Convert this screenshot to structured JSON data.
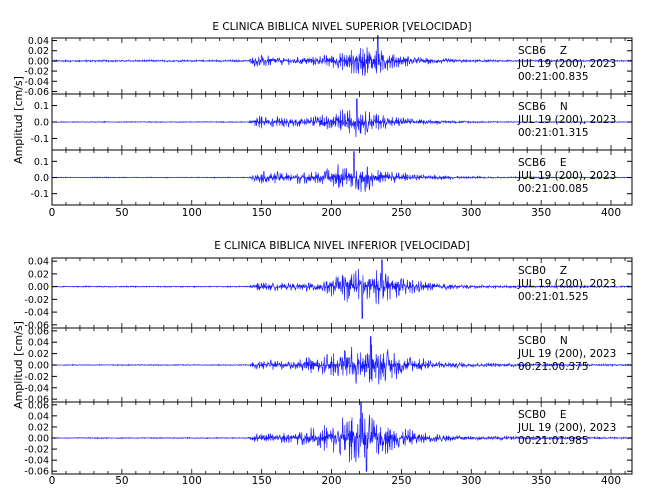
{
  "colors": {
    "trace": "#1a1aff",
    "axes": "#000000",
    "background": "#ffffff"
  },
  "chart_data": [
    {
      "type": "line",
      "title": "E CLINICA BIBLICA NIVEL SUPERIOR [VELOCIDAD]",
      "ylabel": "Amplitud [cm/s]",
      "xlim": [
        0,
        415
      ],
      "xticks": [
        0,
        50,
        100,
        150,
        200,
        250,
        300,
        350,
        400
      ],
      "panels": [
        {
          "station": "SCB6",
          "component": "Z",
          "date": "JUL 19 (200), 2023",
          "time": "00:21:00.835",
          "ylim": [
            -0.065,
            0.045
          ],
          "yticks": [
            0.04,
            0.02,
            0.0,
            -0.02,
            -0.04,
            -0.06
          ],
          "yticklabels": [
            "0.04",
            "0.02",
            "0.00",
            "-0.02",
            "-0.04",
            "-0.06"
          ],
          "envelope": [
            [
              0,
              0.002
            ],
            [
              140,
              0.002
            ],
            [
              147,
              0.015
            ],
            [
              160,
              0.009
            ],
            [
              175,
              0.008
            ],
            [
              195,
              0.012
            ],
            [
              210,
              0.02
            ],
            [
              222,
              0.036
            ],
            [
              232,
              0.032
            ],
            [
              245,
              0.016
            ],
            [
              265,
              0.008
            ],
            [
              290,
              0.004
            ],
            [
              320,
              0.002
            ],
            [
              415,
              0.0015
            ]
          ],
          "bursts": [
            [
              233,
              0.05
            ]
          ]
        },
        {
          "station": "SCB6",
          "component": "N",
          "date": "JUL 19 (200), 2023",
          "time": "00:21:01.315",
          "ylim": [
            -0.17,
            0.17
          ],
          "yticks": [
            0.1,
            0.0,
            -0.1
          ],
          "yticklabels": [
            "0.1",
            "0.0",
            "-0.1"
          ],
          "envelope": [
            [
              0,
              0.003
            ],
            [
              140,
              0.003
            ],
            [
              148,
              0.045
            ],
            [
              160,
              0.035
            ],
            [
              180,
              0.03
            ],
            [
              200,
              0.06
            ],
            [
              215,
              0.1
            ],
            [
              225,
              0.08
            ],
            [
              240,
              0.04
            ],
            [
              260,
              0.018
            ],
            [
              290,
              0.008
            ],
            [
              320,
              0.004
            ],
            [
              415,
              0.003
            ]
          ],
          "bursts": [
            [
              218,
              0.14
            ]
          ]
        },
        {
          "station": "SCB6",
          "component": "E",
          "date": "JUL 19 (200), 2023",
          "time": "00:21:00.085",
          "ylim": [
            -0.17,
            0.17
          ],
          "yticks": [
            0.1,
            0.0,
            -0.1
          ],
          "yticklabels": [
            "0.1",
            "0.0",
            "-0.1"
          ],
          "envelope": [
            [
              0,
              0.003
            ],
            [
              140,
              0.003
            ],
            [
              148,
              0.045
            ],
            [
              160,
              0.04
            ],
            [
              180,
              0.04
            ],
            [
              200,
              0.07
            ],
            [
              215,
              0.12
            ],
            [
              225,
              0.09
            ],
            [
              240,
              0.05
            ],
            [
              260,
              0.02
            ],
            [
              290,
              0.01
            ],
            [
              320,
              0.005
            ],
            [
              415,
              0.003
            ]
          ],
          "bursts": [
            [
              216,
              0.16
            ]
          ]
        }
      ]
    },
    {
      "type": "line",
      "title": "E CLINICA BIBLICA NIVEL INFERIOR [VELOCIDAD]",
      "ylabel": "Amplitud [cm/s]",
      "xlim": [
        0,
        415
      ],
      "xticks": [
        0,
        50,
        100,
        150,
        200,
        250,
        300,
        350,
        400
      ],
      "panels": [
        {
          "station": "SCB0",
          "component": "Z",
          "date": "JUL 19 (200), 2023",
          "time": "00:21:01.525",
          "ylim": [
            -0.065,
            0.045
          ],
          "yticks": [
            0.04,
            0.02,
            0.0,
            -0.02,
            -0.04,
            -0.06
          ],
          "yticklabels": [
            "0.04",
            "0.02",
            "0.00",
            "-0.02",
            "-0.04",
            "-0.06"
          ],
          "envelope": [
            [
              0,
              0.001
            ],
            [
              140,
              0.001
            ],
            [
              147,
              0.008
            ],
            [
              170,
              0.006
            ],
            [
              195,
              0.012
            ],
            [
              215,
              0.028
            ],
            [
              226,
              0.034
            ],
            [
              235,
              0.03
            ],
            [
              248,
              0.018
            ],
            [
              265,
              0.01
            ],
            [
              290,
              0.004
            ],
            [
              320,
              0.002
            ],
            [
              415,
              0.0015
            ]
          ],
          "bursts": [
            [
              222,
              -0.05
            ],
            [
              236,
              0.042
            ]
          ]
        },
        {
          "station": "SCB0",
          "component": "N",
          "date": "JUL 19 (200), 2023",
          "time": "00:21:00.375",
          "ylim": [
            -0.065,
            0.065
          ],
          "yticks": [
            0.06,
            0.04,
            0.02,
            0.0,
            -0.02,
            -0.04,
            -0.06
          ],
          "yticklabels": [
            "0.06",
            "0.04",
            "0.02",
            "0.00",
            "-0.02",
            "-0.04",
            "-0.06"
          ],
          "envelope": [
            [
              0,
              0.001
            ],
            [
              140,
              0.001
            ],
            [
              147,
              0.01
            ],
            [
              170,
              0.008
            ],
            [
              195,
              0.02
            ],
            [
              215,
              0.035
            ],
            [
              228,
              0.04
            ],
            [
              240,
              0.03
            ],
            [
              255,
              0.018
            ],
            [
              275,
              0.008
            ],
            [
              300,
              0.004
            ],
            [
              415,
              0.0015
            ]
          ],
          "bursts": [
            [
              228,
              0.05
            ]
          ]
        },
        {
          "station": "SCB0",
          "component": "E",
          "date": "JUL 19 (200), 2023",
          "time": "00:21:01.985",
          "ylim": [
            -0.065,
            0.065
          ],
          "yticks": [
            0.06,
            0.04,
            0.02,
            0.0,
            -0.02,
            -0.04,
            -0.06
          ],
          "yticklabels": [
            "0.06",
            "0.04",
            "0.02",
            "0.00",
            "-0.02",
            "-0.04",
            "-0.06"
          ],
          "envelope": [
            [
              0,
              0.001
            ],
            [
              140,
              0.001
            ],
            [
              147,
              0.01
            ],
            [
              170,
              0.01
            ],
            [
              195,
              0.025
            ],
            [
              212,
              0.045
            ],
            [
              222,
              0.05
            ],
            [
              235,
              0.035
            ],
            [
              250,
              0.02
            ],
            [
              270,
              0.01
            ],
            [
              300,
              0.004
            ],
            [
              415,
              0.0015
            ]
          ],
          "bursts": [
            [
              221,
              0.064
            ],
            [
              225,
              -0.06
            ]
          ]
        }
      ]
    }
  ]
}
